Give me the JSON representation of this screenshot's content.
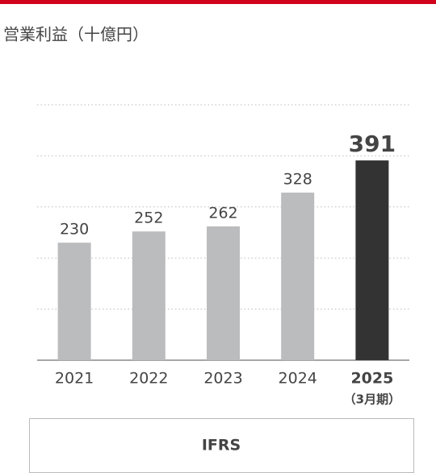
{
  "chart_data": {
    "type": "bar",
    "title": "営業利益（十億円）",
    "categories": [
      "2021",
      "2022",
      "2023",
      "2024",
      "2025"
    ],
    "category_note": "（3月期）",
    "values": [
      230,
      252,
      262,
      328,
      391
    ],
    "colors": [
      "#bbbcbe",
      "#bbbcbe",
      "#bbbcbe",
      "#bbbcbe",
      "#333333"
    ],
    "ylim": [
      0,
      500
    ],
    "yticks": [
      0,
      100,
      200,
      300,
      400,
      500
    ],
    "grid": true,
    "footer": "IFRS"
  }
}
